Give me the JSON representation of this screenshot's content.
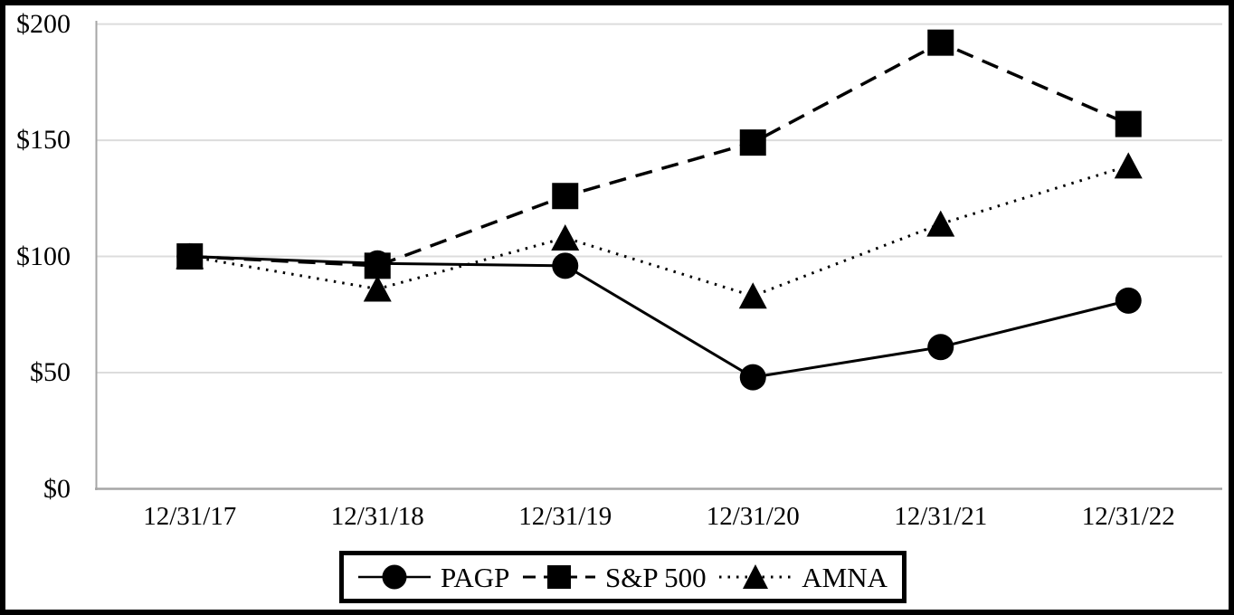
{
  "chart_data": {
    "type": "line",
    "title": "",
    "x_labels": [
      "12/31/17",
      "12/31/18",
      "12/31/19",
      "12/31/20",
      "12/31/21",
      "12/31/22"
    ],
    "y_tick_labels": [
      "$200",
      "$150",
      "$100",
      "$50",
      "$0"
    ],
    "y_tick_values": [
      200,
      150,
      100,
      50,
      0
    ],
    "ylim": [
      0,
      200
    ],
    "grid": true,
    "legend_position": "bottom",
    "series": [
      {
        "name": "PAGP",
        "marker": "circle",
        "line_style": "solid",
        "values": [
          100,
          97,
          96,
          48,
          61,
          81
        ]
      },
      {
        "name": "S&P 500",
        "marker": "square",
        "line_style": "dashed",
        "values": [
          100,
          96,
          126,
          149,
          192,
          157
        ]
      },
      {
        "name": "AMNA",
        "marker": "triangle",
        "line_style": "dotted",
        "values": [
          100,
          86,
          108,
          83,
          114,
          139
        ]
      }
    ],
    "colors": {
      "series": "#000000",
      "gridline": "#dcdcdc",
      "axis": "#a6a6a6",
      "frame": "#000000",
      "background": "#ffffff",
      "text": "#000000"
    }
  }
}
